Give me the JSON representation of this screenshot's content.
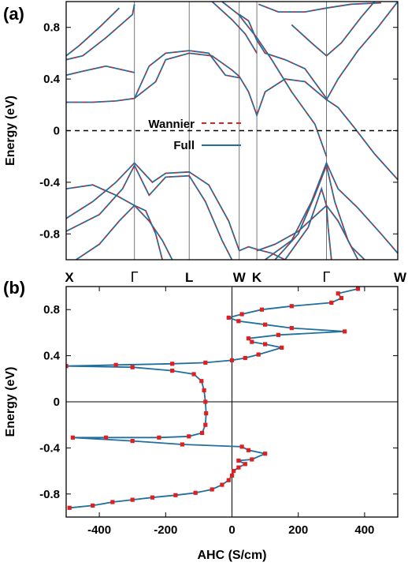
{
  "panel_labels": {
    "a": "(a)",
    "b": "(b)"
  },
  "colors": {
    "full": "#1f6f9f",
    "wannier": "#e02020",
    "axis": "#000000",
    "zero_line": "#000000"
  },
  "chart_data": [
    {
      "type": "line",
      "panel": "(a)",
      "ylabel": "Energy (eV)",
      "ylim": [
        -1.0,
        1.0
      ],
      "yticks": [
        -0.8,
        -0.4,
        0,
        0.4,
        0.8
      ],
      "ytick_labels": [
        "-0.8",
        "-0.4",
        "0",
        "0.4",
        "0.8"
      ],
      "x_range": [
        0,
        1
      ],
      "kpath_labels": [
        "X",
        "Γ",
        "L",
        "W",
        "K",
        "Γ",
        "W"
      ],
      "kpath_positions": [
        0.0,
        0.206,
        0.371,
        0.522,
        0.575,
        0.785,
        1.0
      ],
      "fermi_level": 0,
      "legend": [
        {
          "name": "Wannier",
          "style": "dashed"
        },
        {
          "name": "Full",
          "style": "solid"
        }
      ],
      "legend_position": "center-left",
      "series": [
        {
          "name": "band",
          "points": [
            [
              0,
              0.55
            ],
            [
              0.05,
              0.58
            ],
            [
              0.12,
              0.72
            ],
            [
              0.2,
              0.9
            ],
            [
              0.206,
              0.98
            ]
          ]
        },
        {
          "name": "band",
          "points": [
            [
              0,
              0.58
            ],
            [
              0.04,
              0.66
            ],
            [
              0.1,
              0.8
            ],
            [
              0.16,
              0.95
            ]
          ]
        },
        {
          "name": "band",
          "points": [
            [
              0,
              0.43
            ],
            [
              0.05,
              0.46
            ],
            [
              0.12,
              0.5
            ],
            [
              0.206,
              0.45
            ]
          ]
        },
        {
          "name": "band",
          "points": [
            [
              0,
              0.22
            ],
            [
              0.08,
              0.22
            ],
            [
              0.15,
              0.23
            ],
            [
              0.206,
              0.25
            ]
          ]
        },
        {
          "name": "band",
          "points": [
            [
              0.206,
              0.25
            ],
            [
              0.27,
              0.38
            ],
            [
              0.3,
              0.55
            ],
            [
              0.371,
              0.6
            ],
            [
              0.44,
              0.58
            ],
            [
              0.5,
              0.47
            ],
            [
              0.522,
              0.42
            ]
          ]
        },
        {
          "name": "band",
          "points": [
            [
              0.206,
              0.25
            ],
            [
              0.25,
              0.5
            ],
            [
              0.3,
              0.6
            ],
            [
              0.371,
              0.62
            ],
            [
              0.43,
              0.6
            ],
            [
              0.48,
              0.43
            ],
            [
              0.522,
              0.41
            ]
          ]
        },
        {
          "name": "band",
          "points": [
            [
              0.522,
              0.42
            ],
            [
              0.55,
              0.3
            ],
            [
              0.575,
              0.12
            ],
            [
              0.6,
              0.3
            ],
            [
              0.66,
              0.4
            ],
            [
              0.72,
              0.38
            ],
            [
              0.785,
              0.24
            ]
          ]
        },
        {
          "name": "band",
          "points": [
            [
              0.522,
              0.9
            ],
            [
              0.55,
              0.85
            ],
            [
              0.575,
              0.7
            ],
            [
              0.6,
              0.6
            ],
            [
              0.66,
              0.55
            ],
            [
              0.72,
              0.48
            ],
            [
              0.785,
              0.25
            ]
          ]
        },
        {
          "name": "band",
          "points": [
            [
              0.47,
              1.0
            ],
            [
              0.52,
              0.9
            ],
            [
              0.575,
              0.72
            ],
            [
              0.62,
              0.55
            ],
            [
              0.68,
              0.3
            ],
            [
              0.75,
              0.05
            ],
            [
              0.785,
              -0.2
            ]
          ]
        },
        {
          "name": "band",
          "points": [
            [
              0.785,
              0.24
            ],
            [
              0.82,
              0.4
            ],
            [
              0.88,
              0.62
            ],
            [
              0.94,
              0.8
            ],
            [
              1.0,
              1.0
            ]
          ]
        },
        {
          "name": "band",
          "points": [
            [
              0.785,
              0.24
            ],
            [
              0.82,
              0.18
            ],
            [
              0.87,
              0.02
            ],
            [
              0.93,
              -0.18
            ],
            [
              1.0,
              -0.38
            ]
          ]
        },
        {
          "name": "band",
          "points": [
            [
              0.68,
              0.82
            ],
            [
              0.74,
              0.68
            ],
            [
              0.785,
              0.58
            ],
            [
              0.83,
              0.68
            ],
            [
              0.89,
              0.88
            ],
            [
              0.93,
              1.0
            ]
          ]
        },
        {
          "name": "band",
          "points": [
            [
              0.58,
              0.98
            ],
            [
              0.64,
              0.92
            ],
            [
              0.72,
              0.92
            ],
            [
              0.785,
              0.95
            ],
            [
              0.86,
              0.98
            ],
            [
              0.95,
              0.99
            ]
          ]
        },
        {
          "name": "band",
          "points": [
            [
              0.44,
              1.0
            ],
            [
              0.5,
              0.86
            ],
            [
              0.54,
              0.75
            ],
            [
              0.575,
              0.6
            ]
          ]
        },
        {
          "name": "band",
          "points": [
            [
              0.0,
              -0.68
            ],
            [
              0.08,
              -0.55
            ],
            [
              0.15,
              -0.4
            ],
            [
              0.206,
              -0.25
            ],
            [
              0.26,
              -0.4
            ],
            [
              0.3,
              -0.33
            ],
            [
              0.371,
              -0.32
            ],
            [
              0.43,
              -0.42
            ],
            [
              0.49,
              -0.7
            ],
            [
              0.522,
              -0.93
            ]
          ]
        },
        {
          "name": "band",
          "points": [
            [
              0.0,
              -0.78
            ],
            [
              0.1,
              -0.65
            ],
            [
              0.17,
              -0.45
            ],
            [
              0.206,
              -0.27
            ],
            [
              0.25,
              -0.5
            ],
            [
              0.3,
              -0.36
            ],
            [
              0.371,
              -0.35
            ],
            [
              0.42,
              -0.55
            ],
            [
              0.47,
              -0.85
            ],
            [
              0.5,
              -1.0
            ]
          ]
        },
        {
          "name": "band",
          "points": [
            [
              0.0,
              -0.45
            ],
            [
              0.08,
              -0.42
            ],
            [
              0.15,
              -0.5
            ],
            [
              0.206,
              -0.58
            ],
            [
              0.25,
              -0.7
            ],
            [
              0.29,
              -0.85
            ],
            [
              0.32,
              -1.0
            ]
          ]
        },
        {
          "name": "band",
          "points": [
            [
              0.03,
              -1.0
            ],
            [
              0.1,
              -0.88
            ],
            [
              0.16,
              -0.7
            ],
            [
              0.206,
              -0.58
            ],
            [
              0.24,
              -0.62
            ],
            [
              0.27,
              -0.8
            ],
            [
              0.29,
              -1.0
            ]
          ]
        },
        {
          "name": "band",
          "points": [
            [
              0.522,
              -0.93
            ],
            [
              0.55,
              -0.9
            ],
            [
              0.575,
              -0.92
            ],
            [
              0.62,
              -0.95
            ],
            [
              0.66,
              -1.0
            ]
          ]
        },
        {
          "name": "band",
          "points": [
            [
              0.6,
              -1.0
            ],
            [
              0.68,
              -0.85
            ],
            [
              0.74,
              -0.55
            ],
            [
              0.785,
              -0.25
            ],
            [
              0.82,
              -0.45
            ],
            [
              0.88,
              -0.6
            ],
            [
              0.95,
              -0.8
            ],
            [
              1.0,
              -0.95
            ]
          ]
        },
        {
          "name": "band",
          "points": [
            [
              0.63,
              -1.0
            ],
            [
              0.7,
              -0.8
            ],
            [
              0.75,
              -0.5
            ],
            [
              0.785,
              -0.27
            ],
            [
              0.81,
              -0.55
            ],
            [
              0.85,
              -0.85
            ],
            [
              0.88,
              -1.0
            ]
          ]
        },
        {
          "name": "band",
          "points": [
            [
              0.66,
              -1.0
            ],
            [
              0.73,
              -0.75
            ],
            [
              0.77,
              -0.45
            ],
            [
              0.785,
              -0.58
            ],
            [
              0.79,
              -0.75
            ],
            [
              0.8,
              -1.0
            ]
          ]
        },
        {
          "name": "band",
          "points": [
            [
              0.575,
              -0.93
            ],
            [
              0.63,
              -0.88
            ],
            [
              0.7,
              -0.78
            ],
            [
              0.785,
              -0.58
            ],
            [
              0.82,
              -0.7
            ],
            [
              0.86,
              -0.9
            ],
            [
              0.9,
              -1.0
            ]
          ]
        }
      ]
    },
    {
      "type": "line",
      "panel": "(b)",
      "xlabel": "AHC (S/cm)",
      "ylabel": "Energy (eV)",
      "xlim": [
        -500,
        500
      ],
      "ylim": [
        -1.0,
        1.0
      ],
      "xticks": [
        -400,
        -200,
        0,
        200,
        400
      ],
      "xtick_labels": [
        "-400",
        "-200",
        "0",
        "200",
        "400"
      ],
      "yticks": [
        -0.8,
        -0.4,
        0,
        0.4,
        0.8
      ],
      "ytick_labels": [
        "-0.8",
        "-0.4",
        "0",
        "0.4",
        "0.8"
      ],
      "points": [
        [
          -490,
          -0.92
        ],
        [
          -420,
          -0.9
        ],
        [
          -360,
          -0.87
        ],
        [
          -300,
          -0.85
        ],
        [
          -240,
          -0.83
        ],
        [
          -170,
          -0.81
        ],
        [
          -110,
          -0.79
        ],
        [
          -60,
          -0.76
        ],
        [
          -30,
          -0.72
        ],
        [
          -10,
          -0.68
        ],
        [
          0,
          -0.64
        ],
        [
          5,
          -0.6
        ],
        [
          20,
          -0.57
        ],
        [
          40,
          -0.54
        ],
        [
          20,
          -0.51
        ],
        [
          60,
          -0.5
        ],
        [
          100,
          -0.45
        ],
        [
          50,
          -0.42
        ],
        [
          30,
          -0.39
        ],
        [
          -150,
          -0.37
        ],
        [
          -300,
          -0.34
        ],
        [
          -480,
          -0.31
        ],
        [
          -380,
          -0.31
        ],
        [
          -220,
          -0.31
        ],
        [
          -130,
          -0.3
        ],
        [
          -90,
          -0.27
        ],
        [
          -80,
          -0.2
        ],
        [
          -78,
          -0.1
        ],
        [
          -80,
          0.0
        ],
        [
          -84,
          0.1
        ],
        [
          -92,
          0.18
        ],
        [
          -115,
          0.24
        ],
        [
          -180,
          0.27
        ],
        [
          -300,
          0.3
        ],
        [
          -500,
          0.31
        ],
        [
          -350,
          0.32
        ],
        [
          -180,
          0.33
        ],
        [
          -80,
          0.34
        ],
        [
          0,
          0.36
        ],
        [
          40,
          0.38
        ],
        [
          80,
          0.41
        ],
        [
          150,
          0.47
        ],
        [
          100,
          0.5
        ],
        [
          60,
          0.52
        ],
        [
          50,
          0.55
        ],
        [
          140,
          0.58
        ],
        [
          340,
          0.61
        ],
        [
          180,
          0.64
        ],
        [
          100,
          0.67
        ],
        [
          20,
          0.7
        ],
        [
          -10,
          0.73
        ],
        [
          30,
          0.76
        ],
        [
          90,
          0.8
        ],
        [
          180,
          0.83
        ],
        [
          300,
          0.86
        ],
        [
          330,
          0.9
        ],
        [
          320,
          0.94
        ],
        [
          380,
          0.98
        ]
      ]
    }
  ]
}
